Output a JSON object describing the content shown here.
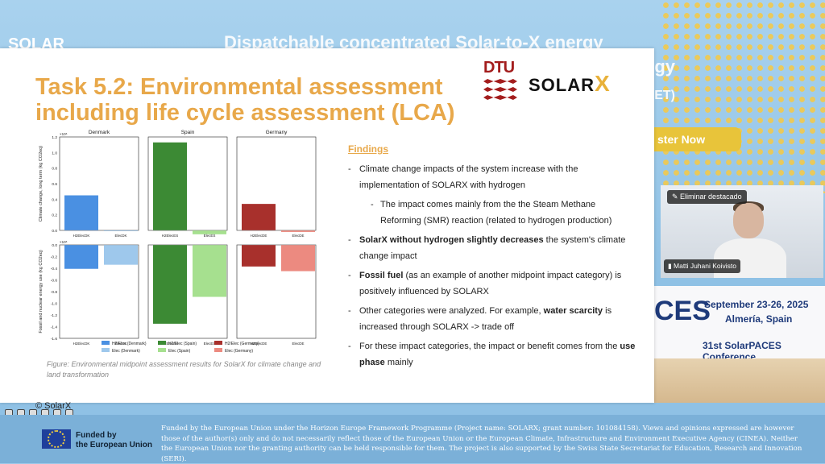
{
  "background": {
    "title_line1": "Dispatchable concentrated Solar-to-X energy",
    "title_line2": "gy",
    "logo": "SOLAR",
    "abbr": "ET)",
    "register": "ster Now"
  },
  "slide": {
    "title_line1": "Task 5.2: Environmental assessment",
    "title_line2": "including life cycle assessment (LCA)",
    "dtu_logo": "DTU",
    "solarx_logo_text": "SOLAR",
    "solarx_logo_x": "X",
    "caption": "Figure: Environmental midpoint assessment results for SolarX for climate change and land transformation",
    "copyright": "© SolarX",
    "findings": {
      "heading": "Findings",
      "items": [
        {
          "text": "Climate change impacts of the system increase with the implementation of SOLARX with hydrogen"
        },
        {
          "text": "The impact comes mainly from the the Steam Methane Reforming (SMR) reaction (related to hydrogen production)",
          "sub": true
        },
        {
          "bold": "SolarX without hydrogen slightly decreases",
          "text": " the system's climate change impact"
        },
        {
          "bold": "Fossil fuel",
          "text": " (as an example of another midpoint impact category) is positively influenced by SOLARX"
        },
        {
          "text": "Other categories were analyzed. For example, ",
          "bold": "water scarcity",
          "text2": " is increased through SOLARX -> trade off"
        },
        {
          "text": "For these impact categories, the impact or benefit comes from the ",
          "bold": "use phase",
          "text2": " mainly"
        }
      ]
    }
  },
  "chart_data": {
    "type": "bar",
    "panels": [
      "Denmark",
      "Spain",
      "Germany"
    ],
    "rows": [
      {
        "ylabel": "Climate change, long term (kg CO2eq)",
        "multiplier": "×10⁶",
        "ylim": [
          0,
          1.2
        ],
        "ticks": [
          "1.2",
          "1.0",
          "0.8",
          "0.6",
          "0.4",
          "0.2",
          "0.0"
        ],
        "values": [
          [
            0.45,
            -0.01
          ],
          [
            1.13,
            -0.05
          ],
          [
            0.34,
            -0.02
          ]
        ]
      },
      {
        "ylabel": "Fossil and nuclear energy use (kg CO2eq)",
        "multiplier": "×10⁶",
        "ylim": [
          -1.6,
          0
        ],
        "ticks": [
          "0.0",
          "-0.2",
          "-0.4",
          "-0.6",
          "-0.8",
          "-1.0",
          "-1.2",
          "-1.4",
          "-1.6"
        ],
        "values": [
          [
            -0.41,
            -0.34
          ],
          [
            -1.35,
            -0.89
          ],
          [
            -0.37,
            -0.45
          ]
        ]
      }
    ],
    "categories": [
      [
        "H2ElecDK",
        "ElecDK"
      ],
      [
        "H2ElecES",
        "ElecES"
      ],
      [
        "H2ElecDE",
        "ElecDE"
      ]
    ],
    "colors": [
      [
        "#4a90e2",
        "#9ec8ec"
      ],
      [
        "#3c8a34",
        "#a6e08f"
      ],
      [
        "#a8302c",
        "#ec8a80"
      ]
    ],
    "legend": [
      [
        "H2/Elec (Denmark)",
        "H2/Elec (Spain)",
        "H2/Elec (Germany)"
      ],
      [
        "Elec (Denmark)",
        "Elec (Spain)",
        "Elec (Germany)"
      ]
    ]
  },
  "conference": {
    "big": "CES",
    "date": "September 23-26, 2025",
    "place": "Almería, Spain",
    "name": "31st SolarPACES Conference"
  },
  "video": {
    "pin_label": "Eliminar destacado",
    "participant": "Matti Juhani Koivisto"
  },
  "footer": {
    "eu_line1": "Funded by",
    "eu_line2": "the European Union",
    "disclaimer": "Funded by the European Union under the Horizon Europe Framework Programme (Project name: SOLARX; grant number: 101084158). Views and opinions expressed are however those of the author(s) only and do not necessarily reflect those of the European Union or the European Climate, Infrastructure and Environment Executive Agency (CINEA). Neither the European Union nor the granting authority can be held responsible for them. The project is also supported by the Swiss State Secretariat for Education, Research and Innovation (SERI)."
  }
}
